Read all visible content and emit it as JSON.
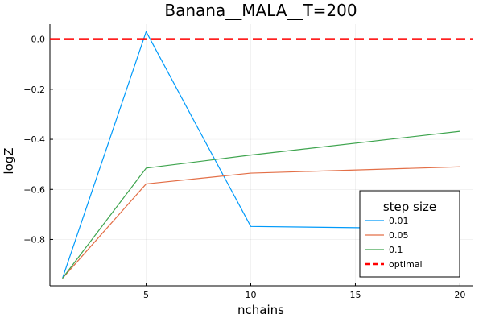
{
  "chart_data": {
    "type": "line",
    "title": "Banana__MALA__T=200",
    "xlabel": "nchains",
    "ylabel": "logZ",
    "xlim": [
      0.4,
      20.6
    ],
    "ylim": [
      -0.985,
      0.06
    ],
    "xticks": [
      5,
      10,
      15,
      20
    ],
    "xtick_labels": [
      "5",
      "10",
      "15",
      "20"
    ],
    "yticks": [
      0.0,
      -0.2,
      -0.4,
      -0.6,
      -0.8
    ],
    "ytick_labels": [
      "0.0",
      "−0.2",
      "−0.4",
      "−0.6",
      "−0.8"
    ],
    "grid": true,
    "legend": {
      "title": "step size",
      "placement": "bottom-right"
    },
    "x": [
      1,
      5,
      10,
      20
    ],
    "series": [
      {
        "name": "0.01",
        "color": "#009AFA",
        "style": "solid",
        "values": [
          -0.955,
          0.03,
          -0.748,
          -0.758
        ]
      },
      {
        "name": "0.05",
        "color": "#E36F47",
        "style": "solid",
        "values": [
          -0.955,
          -0.578,
          -0.535,
          -0.51
        ]
      },
      {
        "name": "0.1",
        "color": "#3EA44E",
        "style": "solid",
        "values": [
          -0.955,
          -0.515,
          -0.463,
          -0.368
        ]
      }
    ],
    "hlines": [
      {
        "name": "optimal",
        "color": "#FF0000",
        "style": "dashed",
        "y": 0.0
      }
    ]
  }
}
